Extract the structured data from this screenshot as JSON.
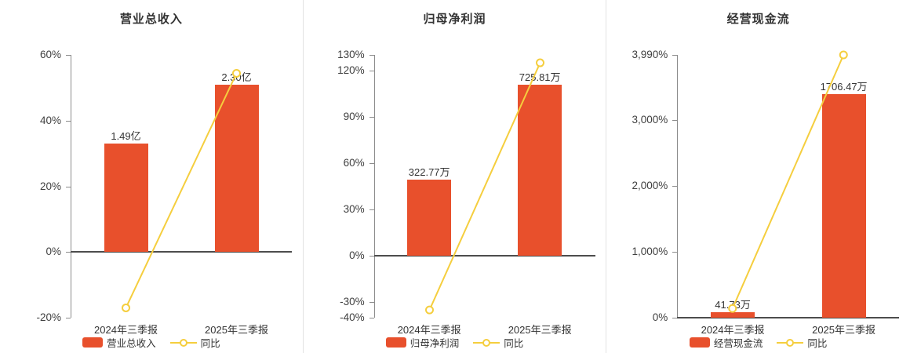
{
  "colors": {
    "bar": "#e8502c",
    "line": "#f5ce3e",
    "marker_fill": "#ffffff",
    "title_text": "#333333",
    "axis_line": "#8c8c8c",
    "zero_line": "#4d4d4d",
    "tick_text": "#404040"
  },
  "chart_data": [
    {
      "type": "bar",
      "title": "营业总收入",
      "categories": [
        "2024年三季报",
        "2025年三季报"
      ],
      "bar_series": {
        "name": "营业总收入",
        "values": [
          1.49,
          2.3
        ],
        "unit": "亿",
        "labels": [
          "1.49亿",
          "2.30亿"
        ]
      },
      "line_series": {
        "name": "同比",
        "values_pct": [
          -17,
          54.4
        ]
      },
      "y_axis": {
        "min": -20,
        "max": 60,
        "tick_values": [
          60,
          40,
          20,
          0,
          -20
        ],
        "tick_labels": [
          "60%",
          "40%",
          "20%",
          "0%",
          "-20%"
        ]
      },
      "legend": [
        "营业总收入",
        "同比"
      ],
      "grid": false,
      "legend_position": "bottom"
    },
    {
      "type": "bar",
      "title": "归母净利润",
      "categories": [
        "2024年三季报",
        "2025年三季报"
      ],
      "bar_series": {
        "name": "归母净利润",
        "values": [
          322.77,
          725.81
        ],
        "unit": "万",
        "labels": [
          "322.77万",
          "725.81万"
        ]
      },
      "line_series": {
        "name": "同比",
        "values_pct": [
          -35,
          124.9
        ]
      },
      "y_axis": {
        "min": -40,
        "max": 130,
        "tick_values": [
          130,
          120,
          90,
          60,
          30,
          0,
          -30,
          -40
        ],
        "tick_labels": [
          "130%",
          "120%",
          "90%",
          "60%",
          "30%",
          "0%",
          "-30%",
          "-40%"
        ]
      },
      "legend": [
        "归母净利润",
        "同比"
      ],
      "grid": false,
      "legend_position": "bottom"
    },
    {
      "type": "bar",
      "title": "经营现金流",
      "categories": [
        "2024年三季报",
        "2025年三季报"
      ],
      "bar_series": {
        "name": "经营现金流",
        "values": [
          41.73,
          1706.47
        ],
        "unit": "万",
        "labels": [
          "41.73万",
          "1706.47万"
        ]
      },
      "line_series": {
        "name": "同比",
        "values_pct": [
          140,
          3990
        ]
      },
      "y_axis": {
        "min": 0,
        "max": 3990,
        "tick_values": [
          3990,
          3000,
          2000,
          1000,
          0
        ],
        "tick_labels": [
          "3,990%",
          "3,000%",
          "2,000%",
          "1,000%",
          "0%"
        ]
      },
      "legend": [
        "经营现金流",
        "同比"
      ],
      "grid": false,
      "legend_position": "bottom"
    }
  ]
}
